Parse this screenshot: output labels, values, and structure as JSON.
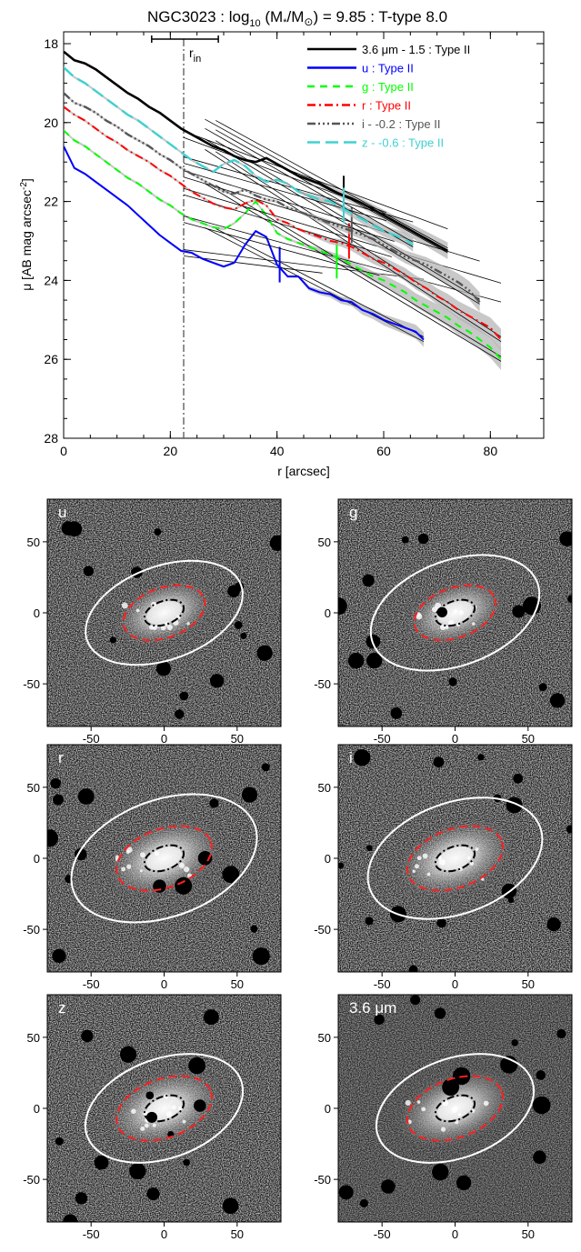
{
  "chart_data": [
    {
      "type": "line",
      "title_prefix": "NGC3023 : log",
      "title_sub": "10",
      "title_mid": " (M",
      "title_star": "*",
      "title_slash": "/M",
      "title_sun": "⊙",
      "title_suffix": ") = 9.85 : T-type 8.0",
      "xlabel": "r [arcsec]",
      "ylabel": "μ [AB mag arcsec",
      "ylabel_sup": "-2",
      "ylabel_end": "]",
      "xlim": [
        0,
        90
      ],
      "ylim": [
        28,
        17.7
      ],
      "yaxis_inverted": true,
      "xticks": [
        "0",
        "20",
        "40",
        "60",
        "80"
      ],
      "yticks": [
        "18",
        "20",
        "22",
        "24",
        "26",
        "28"
      ],
      "rin_label": "r",
      "rin_sub": "in",
      "rin_value": 22.5,
      "rin_error": [
        16.5,
        29
      ],
      "grid": false,
      "legend_position": "top-right",
      "series": [
        {
          "name": "3.6 μm - 1.5 : Type II",
          "color": "#000000",
          "dash": "",
          "width": 2.6,
          "x": [
            0,
            2,
            4,
            6,
            8,
            10,
            12,
            14,
            16,
            18,
            20,
            22,
            24,
            26,
            28,
            30,
            32,
            34,
            36,
            38,
            40,
            42,
            44,
            46,
            48,
            50,
            52,
            54,
            56,
            58,
            60,
            62,
            64,
            66,
            68,
            70,
            72
          ],
          "y": [
            18.2,
            18.42,
            18.5,
            18.65,
            18.85,
            19.05,
            19.25,
            19.4,
            19.6,
            19.75,
            19.95,
            20.15,
            20.3,
            20.45,
            20.6,
            20.7,
            20.85,
            20.95,
            21.0,
            20.9,
            21.05,
            21.2,
            21.35,
            21.45,
            21.55,
            21.7,
            21.82,
            21.92,
            22.05,
            22.2,
            22.35,
            22.5,
            22.65,
            22.8,
            22.95,
            23.1,
            23.25
          ],
          "break_x": 52.5,
          "break_y": 21.8
        },
        {
          "name": "u : Type II",
          "color": "#0000ff",
          "dash": "",
          "width": 2,
          "x": [
            0,
            2,
            4,
            6,
            8,
            10,
            12,
            14,
            16,
            18,
            20,
            22,
            24,
            26,
            28,
            30,
            32,
            34,
            36,
            38,
            40,
            42,
            44,
            46,
            48,
            50,
            52,
            54,
            56,
            58,
            60,
            62,
            64,
            66,
            67.5
          ],
          "y": [
            20.6,
            21.15,
            21.3,
            21.5,
            21.7,
            21.9,
            22.1,
            22.35,
            22.6,
            22.85,
            23.05,
            23.25,
            23.3,
            23.45,
            23.55,
            23.65,
            23.55,
            23.1,
            22.75,
            22.9,
            23.6,
            23.9,
            23.9,
            24.2,
            24.3,
            24.35,
            24.5,
            24.55,
            24.75,
            24.85,
            25.0,
            25.1,
            25.2,
            25.3,
            25.5
          ],
          "break_x": 40.5,
          "break_y": 23.6
        },
        {
          "name": "g : Type II",
          "color": "#00ff00",
          "dash": "8,6",
          "width": 2,
          "x": [
            0,
            2,
            4,
            6,
            8,
            10,
            12,
            14,
            16,
            18,
            20,
            22,
            24,
            26,
            28,
            30,
            32,
            34,
            36,
            38,
            40,
            42,
            44,
            46,
            48,
            50,
            52,
            54,
            56,
            58,
            60,
            62,
            64,
            66,
            68,
            70,
            72,
            74,
            76,
            78,
            80,
            82
          ],
          "y": [
            20.2,
            20.45,
            20.6,
            20.8,
            21.0,
            21.2,
            21.4,
            21.55,
            21.75,
            21.95,
            22.1,
            22.3,
            22.45,
            22.55,
            22.65,
            22.7,
            22.55,
            22.3,
            22.0,
            22.35,
            22.8,
            22.95,
            23.05,
            23.15,
            23.25,
            23.35,
            23.45,
            23.6,
            23.75,
            23.9,
            24.0,
            24.15,
            24.3,
            24.5,
            24.65,
            24.8,
            24.95,
            25.15,
            25.3,
            25.5,
            25.7,
            26.0
          ],
          "break_x": 51.2,
          "break_y": 23.5
        },
        {
          "name": "r : Type II",
          "color": "#ff0000",
          "dash": "9,4,2,4",
          "width": 2,
          "x": [
            0,
            2,
            4,
            6,
            8,
            10,
            12,
            14,
            16,
            18,
            20,
            22,
            24,
            26,
            28,
            30,
            32,
            34,
            36,
            38,
            40,
            42,
            44,
            46,
            48,
            50,
            52,
            54,
            56,
            58,
            60,
            62,
            64,
            66,
            68,
            70,
            72,
            74,
            76,
            78,
            80,
            82
          ],
          "y": [
            19.6,
            19.8,
            19.95,
            20.15,
            20.35,
            20.5,
            20.7,
            20.85,
            21.0,
            21.2,
            21.35,
            21.55,
            21.75,
            21.9,
            22.05,
            22.15,
            22.2,
            22.05,
            21.95,
            22.1,
            22.45,
            22.55,
            22.7,
            22.8,
            22.9,
            23.0,
            23.05,
            23.15,
            23.3,
            23.45,
            23.55,
            23.7,
            23.85,
            24.05,
            24.2,
            24.4,
            24.55,
            24.75,
            24.9,
            25.05,
            25.2,
            25.5
          ],
          "break_x": 53.5,
          "break_y": 23.0
        },
        {
          "name": "i - -0.2 : Type II",
          "color": "#555555",
          "dash": "9,3,2,3,2,3,2,3",
          "width": 2.4,
          "x": [
            0,
            2,
            4,
            6,
            8,
            10,
            12,
            14,
            16,
            18,
            20,
            22,
            24,
            26,
            28,
            30,
            32,
            34,
            36,
            38,
            40,
            42,
            44,
            46,
            48,
            50,
            52,
            54,
            56,
            58,
            60,
            62,
            64,
            66,
            68,
            70,
            72,
            74,
            76,
            78
          ],
          "y": [
            19.25,
            19.5,
            19.6,
            19.75,
            19.95,
            20.1,
            20.3,
            20.45,
            20.6,
            20.8,
            20.95,
            21.15,
            21.3,
            21.45,
            21.6,
            21.75,
            21.8,
            21.7,
            21.85,
            21.95,
            22.0,
            22.15,
            22.25,
            22.35,
            22.45,
            22.55,
            22.65,
            22.75,
            22.85,
            22.95,
            23.1,
            23.25,
            23.4,
            23.5,
            23.6,
            23.75,
            23.9,
            24.05,
            24.25,
            24.55
          ],
          "break_x": 54.0,
          "break_y": 22.6
        },
        {
          "name": "z - -0.6 : Type II",
          "color": "#40d0d0",
          "dash": "14,6",
          "width": 2.4,
          "x": [
            0,
            2,
            4,
            6,
            8,
            10,
            12,
            14,
            16,
            18,
            20,
            22,
            24,
            26,
            28,
            30,
            32,
            34,
            36,
            38,
            40,
            42,
            44,
            46,
            48,
            50,
            52,
            54,
            56,
            58,
            60,
            62,
            64,
            65.5
          ],
          "y": [
            18.6,
            18.85,
            19.0,
            19.2,
            19.4,
            19.6,
            19.8,
            19.95,
            20.15,
            20.35,
            20.55,
            20.75,
            20.95,
            21.1,
            21.25,
            21.05,
            20.95,
            21.1,
            21.35,
            21.5,
            21.45,
            21.55,
            21.75,
            21.85,
            21.95,
            22.0,
            22.15,
            22.3,
            22.45,
            22.6,
            22.75,
            22.85,
            22.95,
            23.1
          ],
          "break_x": 52.5,
          "break_y": 22.1
        }
      ]
    },
    {
      "type": "heatmap",
      "panels": [
        {
          "label": "u",
          "inner": [
            14,
            8
          ],
          "mid": [
            29,
            17
          ],
          "outer": [
            56,
            32
          ],
          "tilt": -20,
          "cx": 0,
          "cy": 0
        },
        {
          "label": "g",
          "inner": [
            14,
            8
          ],
          "mid": [
            29,
            17
          ],
          "outer": [
            60,
            36
          ],
          "tilt": -20,
          "cx": 0,
          "cy": 0
        },
        {
          "label": "r",
          "inner": [
            14,
            8
          ],
          "mid": [
            34,
            20
          ],
          "outer": [
            66,
            40
          ],
          "tilt": -20,
          "cx": 0,
          "cy": 0
        },
        {
          "label": "i",
          "inner": [
            14,
            8
          ],
          "mid": [
            34,
            20
          ],
          "outer": [
            62,
            38
          ],
          "tilt": -20,
          "cx": 0,
          "cy": 0
        },
        {
          "label": "z",
          "inner": [
            14,
            8
          ],
          "mid": [
            34,
            20
          ],
          "outer": [
            56,
            34
          ],
          "tilt": -20,
          "cx": 0,
          "cy": 0
        },
        {
          "label": "3.6 μm",
          "inner": [
            14,
            8
          ],
          "mid": [
            34,
            20
          ],
          "outer": [
            56,
            34
          ],
          "tilt": -20,
          "cx": 0,
          "cy": 0
        }
      ],
      "xticks": [
        "-50",
        "0",
        "50"
      ],
      "yticks": [
        "50",
        "0",
        "-50"
      ],
      "xlim": [
        -80,
        80
      ],
      "ylim": [
        -80,
        80
      ],
      "colors": {
        "outer": "#ffffff",
        "mid": "#ff2020",
        "inner": "#000000"
      }
    }
  ]
}
